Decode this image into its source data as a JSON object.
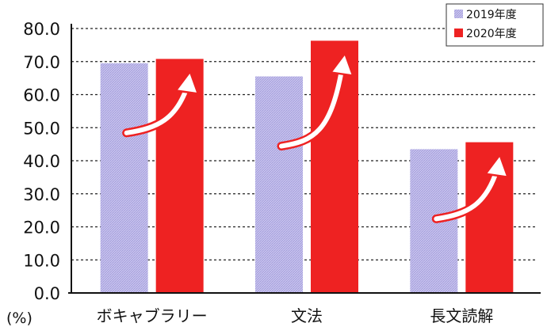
{
  "chart_data": {
    "type": "bar",
    "categories": [
      "ボキャブラリー",
      "文法",
      "長文読解"
    ],
    "series": [
      {
        "name": "2019年度",
        "values": [
          69.5,
          65.5,
          43.5
        ],
        "color": "#b9b3e8"
      },
      {
        "name": "2020年度",
        "values": [
          70.8,
          76.3,
          45.6
        ],
        "color": "#ee2222"
      }
    ],
    "ylim": [
      0,
      80
    ],
    "yticks": [
      "0.0",
      "10.0",
      "20.0",
      "30.0",
      "40.0",
      "50.0",
      "60.0",
      "70.0",
      "80.0"
    ],
    "y_unit": "(%)",
    "grid": true,
    "legend_position": "top-right",
    "annotation": "white upward curved arrows from 2019年度 bar to 2020年度 bar in each category"
  }
}
